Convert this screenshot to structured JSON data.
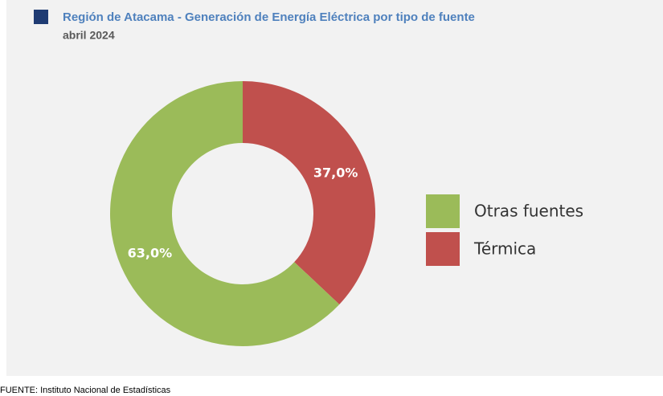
{
  "chart_data": {
    "type": "donut",
    "title": "Región de Atacama - Generación de Energía Eléctrica por tipo de fuente",
    "subtitle": "abril 2024",
    "categories": [
      "Otras fuentes",
      "Térmica"
    ],
    "values": [
      63.0,
      37.0
    ],
    "value_labels": [
      "63,0%",
      "37,0%"
    ],
    "colors": [
      "#9bbb59",
      "#c0504d"
    ],
    "legend": "right"
  },
  "source": "FUENTE: Instituto Nacional de Estadísticas"
}
